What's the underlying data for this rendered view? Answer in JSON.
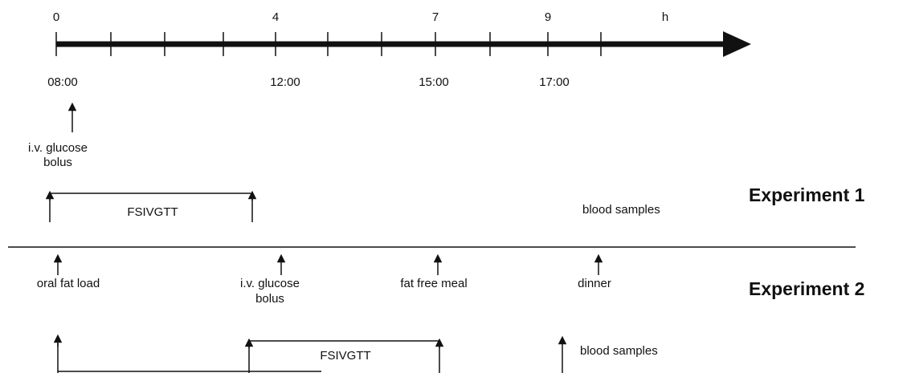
{
  "timeline": {
    "hours": [
      "0",
      "4",
      "7",
      "9"
    ],
    "unit": "h",
    "clock_times": [
      "08:00",
      "12:00",
      "15:00",
      "17:00"
    ]
  },
  "experiment_1": {
    "title": "Experiment 1",
    "events": [
      {
        "label": [
          "i.v. glucose",
          "bolus"
        ]
      }
    ],
    "test": "FSIVGTT",
    "samples": "blood samples"
  },
  "experiment_2": {
    "title": "Experiment 2",
    "events": [
      {
        "label": [
          "oral fat load"
        ]
      },
      {
        "label": [
          "i.v. glucose",
          "bolus"
        ]
      },
      {
        "label": [
          "fat free meal"
        ]
      },
      {
        "label": [
          "dinner"
        ]
      }
    ],
    "test": "FSIVGTT",
    "samples": "blood samples"
  }
}
